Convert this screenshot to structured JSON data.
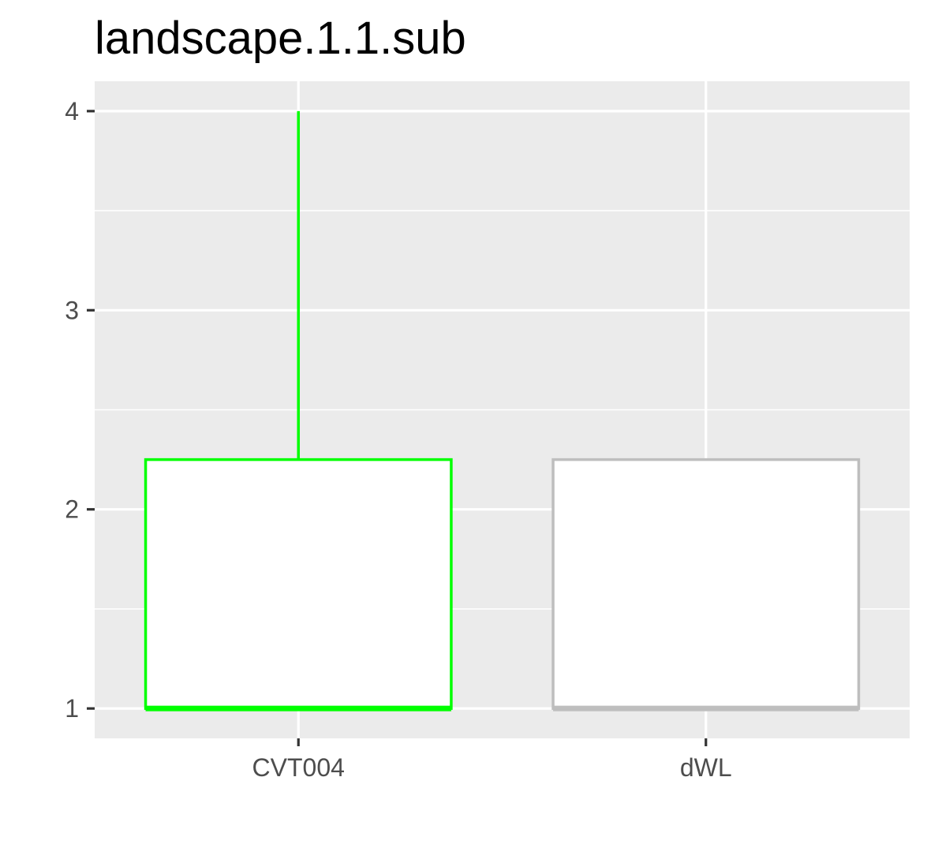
{
  "chart_data": {
    "type": "boxplot",
    "title": "landscape.1.1.sub",
    "xlabel": "",
    "ylabel": "",
    "categories": [
      "CVT004",
      "dWL"
    ],
    "boxes": [
      {
        "category": "CVT004",
        "min": 1,
        "q1": 1,
        "median": 1,
        "q3": 2.25,
        "max": 4,
        "color": "#00ff00"
      },
      {
        "category": "dWL",
        "min": 1,
        "q1": 1,
        "median": 1,
        "q3": 2.25,
        "max": 2.25,
        "color": "#bebebe"
      }
    ],
    "ylim": [
      0.85,
      4.15
    ],
    "yticks": [
      "1",
      "2",
      "3",
      "4"
    ],
    "grid": true,
    "legend": "none",
    "panel_color": "#ebebeb",
    "grid_color": "#ffffff"
  }
}
